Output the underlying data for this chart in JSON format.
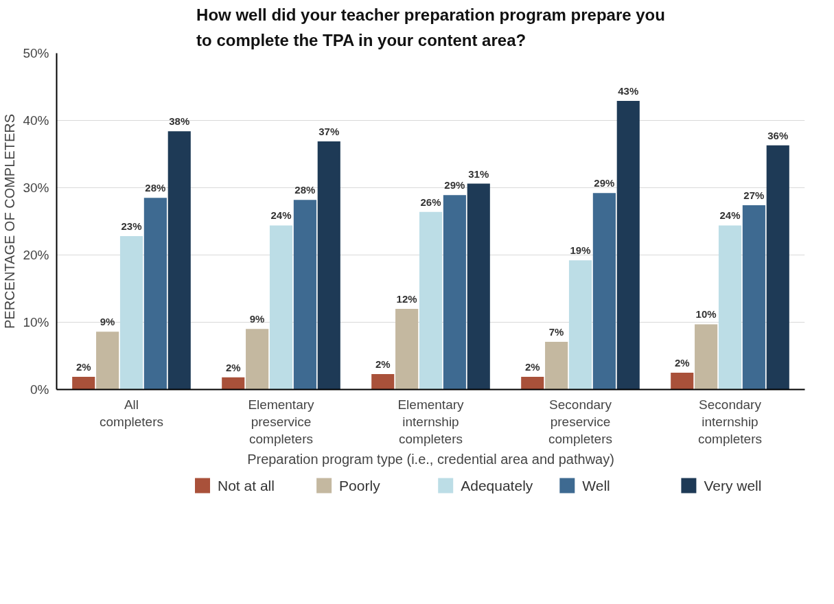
{
  "chart_data": {
    "type": "bar",
    "title": "How well did your teacher preparation program prepare you\nto complete the TPA in your content area?",
    "xlabel": "Preparation program type (i.e., credential area and pathway)",
    "ylabel": "PERCENTAGE OF COMPLETERS",
    "categories": [
      "All\ncompleters",
      "Elementary\npreservice\ncompleters",
      "Elementary\ninternship\ncompleters",
      "Secondary\npreservice\ncompleters",
      "Secondary\ninternship\ncompleters"
    ],
    "series": [
      {
        "name": "Not at all",
        "color": "#a9513a",
        "values": [
          1.9,
          1.8,
          2.3,
          1.9,
          2.5
        ],
        "value_labels": [
          "2%",
          "2%",
          "2%",
          "2%",
          "2%"
        ]
      },
      {
        "name": "Poorly",
        "color": "#c4b8a0",
        "values": [
          8.6,
          9.0,
          12.0,
          7.1,
          9.7
        ],
        "value_labels": [
          "9%",
          "9%",
          "12%",
          "7%",
          "10%"
        ]
      },
      {
        "name": "Adequately",
        "color": "#bcdde6",
        "values": [
          22.8,
          24.4,
          26.4,
          19.2,
          24.4
        ],
        "value_labels": [
          "23%",
          "24%",
          "26%",
          "19%",
          "24%"
        ]
      },
      {
        "name": "Well",
        "color": "#3e6a91",
        "values": [
          28.5,
          28.2,
          28.9,
          29.2,
          27.4
        ],
        "value_labels": [
          "28%",
          "28%",
          "29%",
          "29%",
          "27%"
        ]
      },
      {
        "name": "Very well",
        "color": "#1e3a56",
        "values": [
          38.4,
          36.9,
          30.6,
          42.9,
          36.3
        ],
        "value_labels": [
          "38%",
          "37%",
          "31%",
          "43%",
          "36%"
        ]
      }
    ],
    "ylim": [
      0,
      50
    ],
    "yticks": [
      {
        "value": 0,
        "label": "0%"
      },
      {
        "value": 10,
        "label": "10%"
      },
      {
        "value": 20,
        "label": "20%"
      },
      {
        "value": 30,
        "label": "30%"
      },
      {
        "value": 40,
        "label": "40%"
      },
      {
        "value": 50,
        "label": "50%"
      }
    ],
    "grid": "y",
    "legend": "bottom"
  }
}
